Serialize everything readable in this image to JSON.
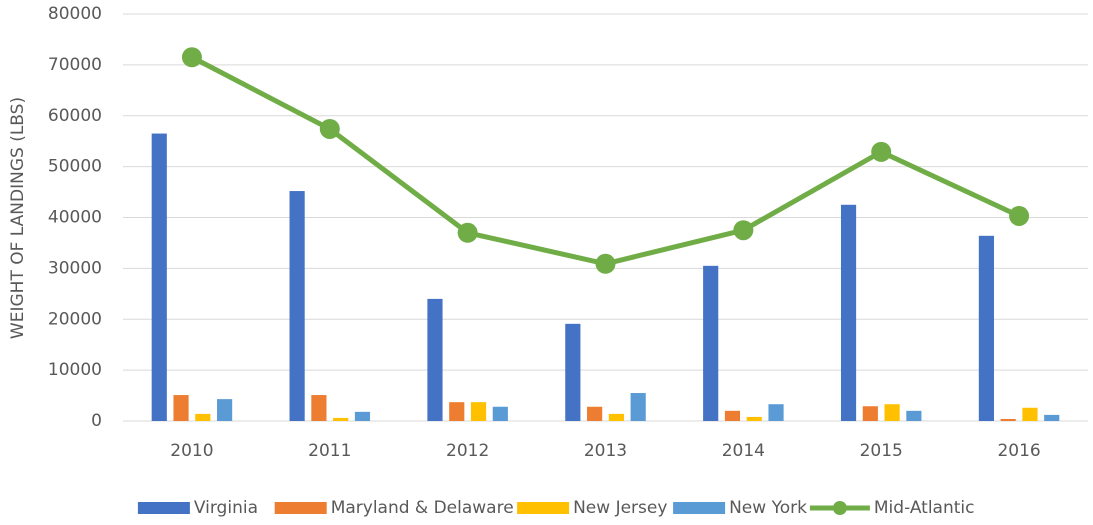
{
  "chart_data": {
    "type": "bar_line",
    "y_label": "WEIGHT OF LANDINGS (LBS)",
    "categories": [
      "2010",
      "2011",
      "2012",
      "2013",
      "2014",
      "2015",
      "2016"
    ],
    "series": [
      {
        "name": "Virginia",
        "color": "#4472c4",
        "type": "bar",
        "values": [
          56500,
          45200,
          24000,
          19100,
          30500,
          42500,
          36400
        ]
      },
      {
        "name": "Maryland & Delaware",
        "color": "#ed7d31",
        "type": "bar",
        "values": [
          5100,
          5100,
          3700,
          2800,
          2000,
          2900,
          400
        ]
      },
      {
        "name": "New Jersey",
        "color": "#ffc000",
        "type": "bar",
        "values": [
          1400,
          600,
          3700,
          1400,
          800,
          3300,
          2600
        ]
      },
      {
        "name": "New York",
        "color": "#5b9bd5",
        "type": "bar",
        "values": [
          4300,
          1800,
          2800,
          5500,
          3300,
          2000,
          1200
        ]
      },
      {
        "name": "Mid-Atlantic",
        "color": "#70ad47",
        "type": "line",
        "values": [
          71500,
          57400,
          37000,
          30900,
          37500,
          52900,
          40300
        ]
      }
    ],
    "ylim": [
      0,
      80000
    ],
    "yticks": [
      0,
      10000,
      20000,
      30000,
      40000,
      50000,
      60000,
      70000,
      80000
    ],
    "grid": true,
    "legend": "bottom"
  }
}
